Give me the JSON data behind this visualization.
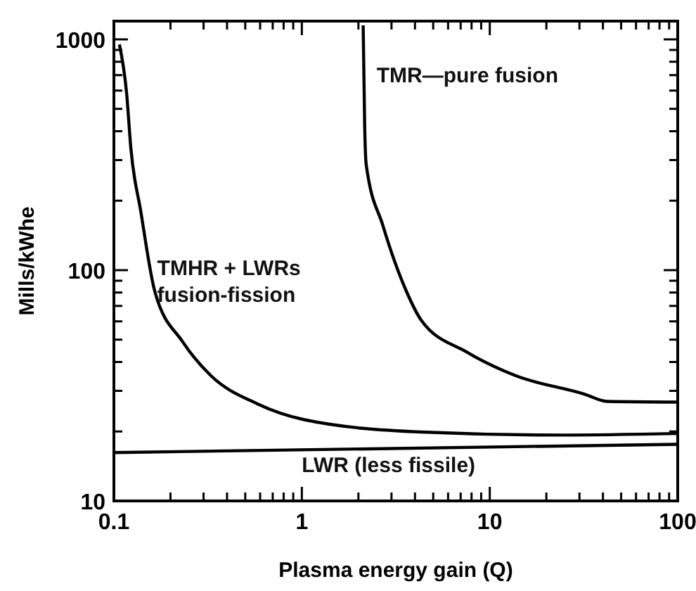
{
  "chart_data": {
    "type": "line",
    "xlabel": "Plasma energy gain (Q)",
    "ylabel": "Mills/kWhe",
    "log": "xy",
    "xlim": [
      0.1,
      100
    ],
    "ylim": [
      10,
      1200
    ],
    "xticks": [
      {
        "value": 0.1,
        "label": "0.1"
      },
      {
        "value": 0.2,
        "label": null
      },
      {
        "value": 0.3,
        "label": null
      },
      {
        "value": 0.4,
        "label": null
      },
      {
        "value": 0.5,
        "label": null
      },
      {
        "value": 0.6,
        "label": null
      },
      {
        "value": 0.7,
        "label": null
      },
      {
        "value": 0.8,
        "label": null
      },
      {
        "value": 0.9,
        "label": null
      },
      1,
      {
        "value": 2,
        "label": null
      },
      {
        "value": 3,
        "label": null
      },
      {
        "value": 4,
        "label": null
      },
      {
        "value": 5,
        "label": null
      },
      {
        "value": 6,
        "label": null
      },
      {
        "value": 7,
        "label": null
      },
      {
        "value": 8,
        "label": null
      },
      {
        "value": 9,
        "label": null
      },
      10,
      {
        "value": 20,
        "label": null
      },
      {
        "value": 30,
        "label": null
      },
      {
        "value": 40,
        "label": null
      },
      {
        "value": 50,
        "label": null
      },
      {
        "value": 60,
        "label": null
      },
      {
        "value": 70,
        "label": null
      },
      {
        "value": 80,
        "label": null
      },
      {
        "value": 90,
        "label": null
      },
      100
    ],
    "yticks": [
      10,
      {
        "value": 20,
        "label": null
      },
      {
        "value": 30,
        "label": null
      },
      {
        "value": 40,
        "label": null
      },
      {
        "value": 50,
        "label": null
      },
      {
        "value": 60,
        "label": null
      },
      {
        "value": 70,
        "label": null
      },
      {
        "value": 80,
        "label": null
      },
      {
        "value": 90,
        "label": null
      },
      100,
      {
        "value": 200,
        "label": null
      },
      {
        "value": 300,
        "label": null
      },
      {
        "value": 400,
        "label": null
      },
      {
        "value": 500,
        "label": null
      },
      {
        "value": 600,
        "label": null
      },
      {
        "value": 700,
        "label": null
      },
      {
        "value": 800,
        "label": null
      },
      {
        "value": 900,
        "label": null
      },
      1000
    ],
    "marker": "none",
    "line_style": "solid",
    "series": [
      {
        "name": "TMR—pure fusion",
        "color": "#000000",
        "x": [
          2.12,
          2.16,
          2.2,
          2.7,
          3.6,
          4.3,
          7.6,
          13.6,
          32,
          42,
          100
        ],
        "values": [
          1150,
          419,
          287,
          156,
          81,
          61,
          44,
          35,
          29,
          27,
          26.8
        ]
      },
      {
        "name": "TMHR + LWRs fusion-fission",
        "color": "#000000",
        "x": [
          0.107,
          0.117,
          0.123,
          0.139,
          0.165,
          0.232,
          0.327,
          0.577,
          1.03,
          4.3,
          24,
          100
        ],
        "values": [
          950,
          578,
          340,
          180,
          81,
          49,
          35,
          26.4,
          22.5,
          19.9,
          19.3,
          19.6
        ]
      },
      {
        "name": "LWR (less fissile)",
        "color": "#000000",
        "x": [
          0.1,
          100
        ],
        "values": [
          16.2,
          17.6
        ]
      }
    ]
  }
}
